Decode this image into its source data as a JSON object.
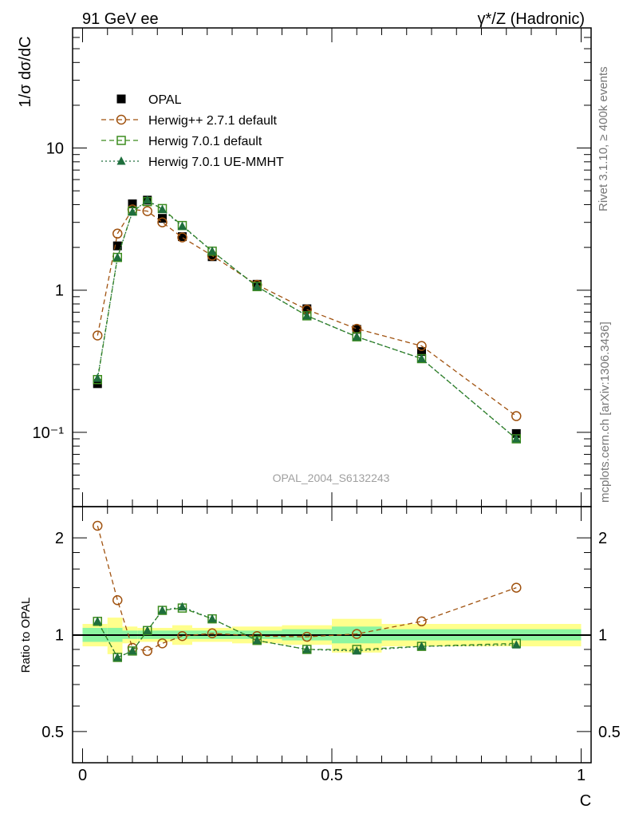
{
  "header": {
    "left_label": "91 GeV ee",
    "right_label": "γ*/Z (Hadronic)"
  },
  "side_labels": {
    "rivet": "Rivet 3.1.10, ≥ 400k events",
    "mcplots": "mcplots.cern.ch [arXiv:1306.3436]"
  },
  "watermark": "OPAL_2004_S6132243",
  "legend": [
    {
      "key": "data",
      "label": "OPAL"
    },
    {
      "key": "hwpp",
      "label": "Herwig++ 2.7.1 default"
    },
    {
      "key": "hw7",
      "label": "Herwig 7.0.1 default"
    },
    {
      "key": "hw7ue",
      "label": "Herwig 7.0.1 UE-MMHT"
    }
  ],
  "colors": {
    "data": "#000000",
    "hwpp": "#a0520f",
    "hw7": "#3c8c1e",
    "hw7ue": "#1e6e3c",
    "band_inner": "#8cf5a0",
    "band_outer": "#ffff8c",
    "frame": "#000000"
  },
  "chart_data": [
    {
      "type": "line",
      "panel": "main",
      "ylabel": "1/σ dσ/dC",
      "yscale": "log",
      "ylim": [
        0.03,
        70
      ],
      "xlim": [
        -0.02,
        1.02
      ],
      "yticks": [
        0.1,
        1,
        10
      ],
      "ytick_labels": [
        "10⁻¹",
        "1",
        "10"
      ],
      "x": [
        0.03,
        0.07,
        0.1,
        0.13,
        0.16,
        0.2,
        0.26,
        0.35,
        0.45,
        0.55,
        0.68,
        0.87
      ],
      "series": [
        {
          "key": "data",
          "name": "OPAL",
          "style": "marker",
          "marker": "square",
          "values": [
            0.22,
            2.05,
            4.05,
            4.3,
            3.2,
            2.38,
            1.72,
            1.1,
            0.74,
            0.53,
            0.37,
            0.098
          ]
        },
        {
          "key": "hwpp",
          "name": "Herwig++ 2.7.1 default",
          "style": "dashed",
          "marker": "circle",
          "values": [
            0.48,
            2.5,
            3.7,
            3.6,
            3.0,
            2.35,
            1.75,
            1.09,
            0.73,
            0.535,
            0.405,
            0.13
          ]
        },
        {
          "key": "hw7",
          "name": "Herwig 7.0.1 default",
          "style": "dashed",
          "marker": "square-open",
          "values": [
            0.235,
            1.7,
            3.6,
            4.2,
            3.75,
            2.85,
            1.88,
            1.06,
            0.66,
            0.47,
            0.33,
            0.09
          ]
        },
        {
          "key": "hw7ue",
          "name": "Herwig 7.0.1 UE-MMHT",
          "style": "dotted",
          "marker": "triangle",
          "values": [
            0.24,
            1.7,
            3.55,
            4.3,
            3.7,
            2.82,
            1.88,
            1.06,
            0.66,
            0.47,
            0.33,
            0.09
          ]
        }
      ]
    },
    {
      "type": "line",
      "panel": "ratio",
      "ylabel": "Ratio to OPAL",
      "xlabel": "C",
      "yscale": "log",
      "ylim": [
        0.4,
        2.5
      ],
      "xlim": [
        -0.02,
        1.02
      ],
      "yticks": [
        0.5,
        1,
        2
      ],
      "ytick_labels": [
        "0.5",
        "1",
        "2"
      ],
      "xticks": [
        0,
        0.5,
        1
      ],
      "xtick_labels": [
        "0",
        "0.5",
        "1"
      ],
      "x": [
        0.03,
        0.07,
        0.1,
        0.13,
        0.16,
        0.2,
        0.26,
        0.35,
        0.45,
        0.55,
        0.68,
        0.87
      ],
      "uncertainty_bins": [
        {
          "lo": 0.0,
          "hi": 0.05,
          "inner": 0.05,
          "outer": 0.08
        },
        {
          "lo": 0.05,
          "hi": 0.08,
          "inner": 0.05,
          "outer": 0.13
        },
        {
          "lo": 0.08,
          "hi": 0.11,
          "inner": 0.03,
          "outer": 0.06
        },
        {
          "lo": 0.11,
          "hi": 0.14,
          "inner": 0.03,
          "outer": 0.05
        },
        {
          "lo": 0.14,
          "hi": 0.18,
          "inner": 0.03,
          "outer": 0.05
        },
        {
          "lo": 0.18,
          "hi": 0.22,
          "inner": 0.03,
          "outer": 0.07
        },
        {
          "lo": 0.22,
          "hi": 0.3,
          "inner": 0.03,
          "outer": 0.05
        },
        {
          "lo": 0.3,
          "hi": 0.4,
          "inner": 0.03,
          "outer": 0.06
        },
        {
          "lo": 0.4,
          "hi": 0.5,
          "inner": 0.04,
          "outer": 0.07
        },
        {
          "lo": 0.5,
          "hi": 0.6,
          "inner": 0.06,
          "outer": 0.12
        },
        {
          "lo": 0.6,
          "hi": 0.76,
          "inner": 0.04,
          "outer": 0.08
        },
        {
          "lo": 0.76,
          "hi": 1.0,
          "inner": 0.04,
          "outer": 0.08
        }
      ],
      "series": [
        {
          "key": "hwpp",
          "name": "Herwig++ 2.7.1 default",
          "style": "dashed",
          "marker": "circle",
          "values": [
            2.18,
            1.28,
            0.91,
            0.89,
            0.94,
            0.99,
            1.01,
            0.99,
            0.985,
            1.005,
            1.1,
            1.4
          ]
        },
        {
          "key": "hw7",
          "name": "Herwig 7.0.1 default",
          "style": "dashed",
          "marker": "square-open",
          "values": [
            1.1,
            0.85,
            0.89,
            1.03,
            1.19,
            1.21,
            1.12,
            0.96,
            0.9,
            0.9,
            0.92,
            0.94
          ]
        },
        {
          "key": "hw7ue",
          "name": "Herwig 7.0.1 UE-MMHT",
          "style": "dotted",
          "marker": "triangle",
          "values": [
            1.1,
            0.85,
            0.89,
            1.03,
            1.19,
            1.22,
            1.12,
            0.96,
            0.9,
            0.89,
            0.92,
            0.93
          ]
        }
      ]
    }
  ]
}
